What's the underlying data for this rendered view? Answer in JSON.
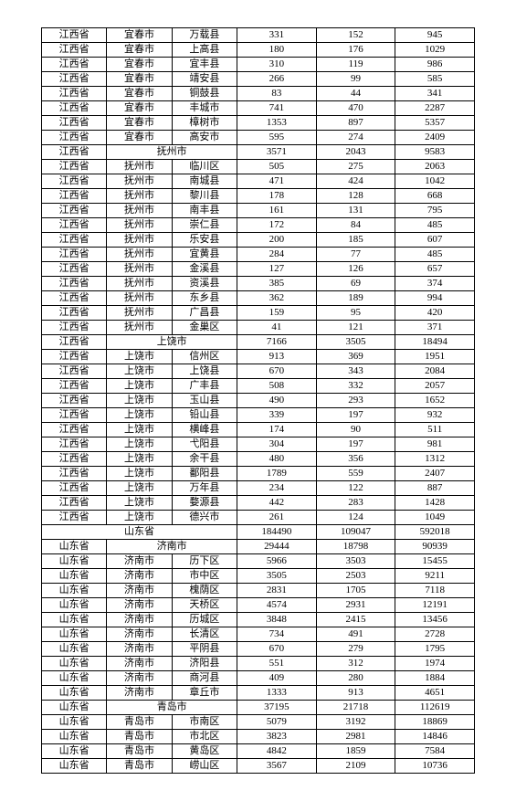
{
  "table": {
    "rows": [
      {
        "type": "row",
        "prov": "江西省",
        "city": "宜春市",
        "county": "万载县",
        "n1": "331",
        "n2": "152",
        "n3": "945"
      },
      {
        "type": "row",
        "prov": "江西省",
        "city": "宜春市",
        "county": "上高县",
        "n1": "180",
        "n2": "176",
        "n3": "1029"
      },
      {
        "type": "row",
        "prov": "江西省",
        "city": "宜春市",
        "county": "宜丰县",
        "n1": "310",
        "n2": "119",
        "n3": "986"
      },
      {
        "type": "row",
        "prov": "江西省",
        "city": "宜春市",
        "county": "靖安县",
        "n1": "266",
        "n2": "99",
        "n3": "585"
      },
      {
        "type": "row",
        "prov": "江西省",
        "city": "宜春市",
        "county": "铜鼓县",
        "n1": "83",
        "n2": "44",
        "n3": "341"
      },
      {
        "type": "row",
        "prov": "江西省",
        "city": "宜春市",
        "county": "丰城市",
        "n1": "741",
        "n2": "470",
        "n3": "2287"
      },
      {
        "type": "row",
        "prov": "江西省",
        "city": "宜春市",
        "county": "樟树市",
        "n1": "1353",
        "n2": "897",
        "n3": "5357"
      },
      {
        "type": "row",
        "prov": "江西省",
        "city": "宜春市",
        "county": "高安市",
        "n1": "595",
        "n2": "274",
        "n3": "2409"
      },
      {
        "type": "city",
        "prov": "江西省",
        "city": "抚州市",
        "n1": "3571",
        "n2": "2043",
        "n3": "9583"
      },
      {
        "type": "row",
        "prov": "江西省",
        "city": "抚州市",
        "county": "临川区",
        "n1": "505",
        "n2": "275",
        "n3": "2063"
      },
      {
        "type": "row",
        "prov": "江西省",
        "city": "抚州市",
        "county": "南城县",
        "n1": "471",
        "n2": "424",
        "n3": "1042"
      },
      {
        "type": "row",
        "prov": "江西省",
        "city": "抚州市",
        "county": "黎川县",
        "n1": "178",
        "n2": "128",
        "n3": "668"
      },
      {
        "type": "row",
        "prov": "江西省",
        "city": "抚州市",
        "county": "南丰县",
        "n1": "161",
        "n2": "131",
        "n3": "795"
      },
      {
        "type": "row",
        "prov": "江西省",
        "city": "抚州市",
        "county": "崇仁县",
        "n1": "172",
        "n2": "84",
        "n3": "485"
      },
      {
        "type": "row",
        "prov": "江西省",
        "city": "抚州市",
        "county": "乐安县",
        "n1": "200",
        "n2": "185",
        "n3": "607"
      },
      {
        "type": "row",
        "prov": "江西省",
        "city": "抚州市",
        "county": "宜黄县",
        "n1": "284",
        "n2": "77",
        "n3": "485"
      },
      {
        "type": "row",
        "prov": "江西省",
        "city": "抚州市",
        "county": "金溪县",
        "n1": "127",
        "n2": "126",
        "n3": "657"
      },
      {
        "type": "row",
        "prov": "江西省",
        "city": "抚州市",
        "county": "资溪县",
        "n1": "385",
        "n2": "69",
        "n3": "374"
      },
      {
        "type": "row",
        "prov": "江西省",
        "city": "抚州市",
        "county": "东乡县",
        "n1": "362",
        "n2": "189",
        "n3": "994"
      },
      {
        "type": "row",
        "prov": "江西省",
        "city": "抚州市",
        "county": "广昌县",
        "n1": "159",
        "n2": "95",
        "n3": "420"
      },
      {
        "type": "row",
        "prov": "江西省",
        "city": "抚州市",
        "county": "金巢区",
        "n1": "41",
        "n2": "121",
        "n3": "371"
      },
      {
        "type": "city",
        "prov": "江西省",
        "city": "上饶市",
        "n1": "7166",
        "n2": "3505",
        "n3": "18494"
      },
      {
        "type": "row",
        "prov": "江西省",
        "city": "上饶市",
        "county": "信州区",
        "n1": "913",
        "n2": "369",
        "n3": "1951"
      },
      {
        "type": "row",
        "prov": "江西省",
        "city": "上饶市",
        "county": "上饶县",
        "n1": "670",
        "n2": "343",
        "n3": "2084"
      },
      {
        "type": "row",
        "prov": "江西省",
        "city": "上饶市",
        "county": "广丰县",
        "n1": "508",
        "n2": "332",
        "n3": "2057"
      },
      {
        "type": "row",
        "prov": "江西省",
        "city": "上饶市",
        "county": "玉山县",
        "n1": "490",
        "n2": "293",
        "n3": "1652"
      },
      {
        "type": "row",
        "prov": "江西省",
        "city": "上饶市",
        "county": "铅山县",
        "n1": "339",
        "n2": "197",
        "n3": "932"
      },
      {
        "type": "row",
        "prov": "江西省",
        "city": "上饶市",
        "county": "横峰县",
        "n1": "174",
        "n2": "90",
        "n3": "511"
      },
      {
        "type": "row",
        "prov": "江西省",
        "city": "上饶市",
        "county": "弋阳县",
        "n1": "304",
        "n2": "197",
        "n3": "981"
      },
      {
        "type": "row",
        "prov": "江西省",
        "city": "上饶市",
        "county": "余干县",
        "n1": "480",
        "n2": "356",
        "n3": "1312"
      },
      {
        "type": "row",
        "prov": "江西省",
        "city": "上饶市",
        "county": "鄱阳县",
        "n1": "1789",
        "n2": "559",
        "n3": "2407"
      },
      {
        "type": "row",
        "prov": "江西省",
        "city": "上饶市",
        "county": "万年县",
        "n1": "234",
        "n2": "122",
        "n3": "887"
      },
      {
        "type": "row",
        "prov": "江西省",
        "city": "上饶市",
        "county": "婺源县",
        "n1": "442",
        "n2": "283",
        "n3": "1428"
      },
      {
        "type": "row",
        "prov": "江西省",
        "city": "上饶市",
        "county": "德兴市",
        "n1": "261",
        "n2": "124",
        "n3": "1049"
      },
      {
        "type": "prov",
        "prov": "山东省",
        "n1": "184490",
        "n2": "109047",
        "n3": "592018"
      },
      {
        "type": "city",
        "prov": "山东省",
        "city": "济南市",
        "n1": "29444",
        "n2": "18798",
        "n3": "90939"
      },
      {
        "type": "row",
        "prov": "山东省",
        "city": "济南市",
        "county": "历下区",
        "n1": "5966",
        "n2": "3503",
        "n3": "15455"
      },
      {
        "type": "row",
        "prov": "山东省",
        "city": "济南市",
        "county": "市中区",
        "n1": "3505",
        "n2": "2503",
        "n3": "9211"
      },
      {
        "type": "row",
        "prov": "山东省",
        "city": "济南市",
        "county": "槐荫区",
        "n1": "2831",
        "n2": "1705",
        "n3": "7118"
      },
      {
        "type": "row",
        "prov": "山东省",
        "city": "济南市",
        "county": "天桥区",
        "n1": "4574",
        "n2": "2931",
        "n3": "12191"
      },
      {
        "type": "row",
        "prov": "山东省",
        "city": "济南市",
        "county": "历城区",
        "n1": "3848",
        "n2": "2415",
        "n3": "13456"
      },
      {
        "type": "row",
        "prov": "山东省",
        "city": "济南市",
        "county": "长清区",
        "n1": "734",
        "n2": "491",
        "n3": "2728"
      },
      {
        "type": "row",
        "prov": "山东省",
        "city": "济南市",
        "county": "平阴县",
        "n1": "670",
        "n2": "279",
        "n3": "1795"
      },
      {
        "type": "row",
        "prov": "山东省",
        "city": "济南市",
        "county": "济阳县",
        "n1": "551",
        "n2": "312",
        "n3": "1974"
      },
      {
        "type": "row",
        "prov": "山东省",
        "city": "济南市",
        "county": "商河县",
        "n1": "409",
        "n2": "280",
        "n3": "1884"
      },
      {
        "type": "row",
        "prov": "山东省",
        "city": "济南市",
        "county": "章丘市",
        "n1": "1333",
        "n2": "913",
        "n3": "4651"
      },
      {
        "type": "city",
        "prov": "山东省",
        "city": "青岛市",
        "n1": "37195",
        "n2": "21718",
        "n3": "112619"
      },
      {
        "type": "row",
        "prov": "山东省",
        "city": "青岛市",
        "county": "市南区",
        "n1": "5079",
        "n2": "3192",
        "n3": "18869"
      },
      {
        "type": "row",
        "prov": "山东省",
        "city": "青岛市",
        "county": "市北区",
        "n1": "3823",
        "n2": "2981",
        "n3": "14846"
      },
      {
        "type": "row",
        "prov": "山东省",
        "city": "青岛市",
        "county": "黄岛区",
        "n1": "4842",
        "n2": "1859",
        "n3": "7584"
      },
      {
        "type": "row",
        "prov": "山东省",
        "city": "青岛市",
        "county": "崂山区",
        "n1": "3567",
        "n2": "2109",
        "n3": "10736"
      }
    ]
  }
}
